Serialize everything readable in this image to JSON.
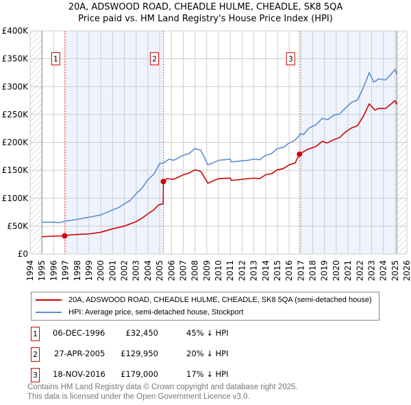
{
  "chart_data": {
    "type": "line",
    "title": "20A, ADSWOOD ROAD, CHEADLE HULME, CHEADLE, SK8 5QA",
    "subtitle": "Price paid vs. HM Land Registry's House Price Index (HPI)",
    "xlim": [
      1994,
      2026
    ],
    "ylim": [
      0,
      400000
    ],
    "x_ticks": [
      "1994",
      "1995",
      "1996",
      "1997",
      "1998",
      "1999",
      "2000",
      "2001",
      "2002",
      "2003",
      "2004",
      "2005",
      "2006",
      "2007",
      "2008",
      "2009",
      "2010",
      "2011",
      "2012",
      "2013",
      "2014",
      "2015",
      "2016",
      "2017",
      "2018",
      "2019",
      "2020",
      "2021",
      "2022",
      "2023",
      "2024",
      "2025",
      "2026"
    ],
    "y_ticks": [
      {
        "v": 0,
        "label": "£0"
      },
      {
        "v": 50000,
        "label": "£50K"
      },
      {
        "v": 100000,
        "label": "£100K"
      },
      {
        "v": 150000,
        "label": "£150K"
      },
      {
        "v": 200000,
        "label": "£200K"
      },
      {
        "v": 250000,
        "label": "£250K"
      },
      {
        "v": 300000,
        "label": "£300K"
      },
      {
        "v": 350000,
        "label": "£350K"
      },
      {
        "v": 400000,
        "label": "£400K"
      }
    ],
    "grid": true,
    "data_range": [
      1995,
      2025.15
    ],
    "shaded_periods": [
      [
        1996.93,
        2005.32
      ],
      [
        2016.88,
        2025.15
      ]
    ],
    "series": [
      {
        "name": "20A, ADSWOOD ROAD, CHEADLE HULME, CHEADLE, SK8 5QA (semi-detached house)",
        "color": "#cc0000",
        "points": [
          [
            1995,
            31000
          ],
          [
            1996,
            32000
          ],
          [
            1996.93,
            32450
          ],
          [
            1997.3,
            34000
          ],
          [
            1998,
            35000
          ],
          [
            1999,
            36000
          ],
          [
            2000,
            39000
          ],
          [
            2001,
            45000
          ],
          [
            2002,
            50000
          ],
          [
            2003,
            58000
          ],
          [
            2003.5,
            64000
          ],
          [
            2004,
            72000
          ],
          [
            2004.5,
            79000
          ],
          [
            2004.9,
            88000
          ],
          [
            2005.3,
            90000
          ],
          [
            2005.32,
            129950
          ],
          [
            2005.6,
            135000
          ],
          [
            2006.2,
            134000
          ],
          [
            2007,
            142000
          ],
          [
            2007.5,
            145000
          ],
          [
            2008,
            151000
          ],
          [
            2008.5,
            148000
          ],
          [
            2009.1,
            127000
          ],
          [
            2010,
            135000
          ],
          [
            2011,
            136000
          ],
          [
            2011.1,
            132000
          ],
          [
            2012,
            134000
          ],
          [
            2013,
            136000
          ],
          [
            2013.5,
            135000
          ],
          [
            2014,
            142000
          ],
          [
            2014.5,
            144000
          ],
          [
            2015,
            151000
          ],
          [
            2015.5,
            153000
          ],
          [
            2016,
            160000
          ],
          [
            2016.5,
            163000
          ],
          [
            2016.88,
            179000
          ],
          [
            2017.5,
            187000
          ],
          [
            2018.3,
            193000
          ],
          [
            2018.8,
            202000
          ],
          [
            2019.2,
            199000
          ],
          [
            2019.8,
            205000
          ],
          [
            2020.3,
            209000
          ],
          [
            2020.8,
            219000
          ],
          [
            2021.3,
            226000
          ],
          [
            2021.8,
            230000
          ],
          [
            2022.3,
            247000
          ],
          [
            2022.8,
            269000
          ],
          [
            2023.3,
            258000
          ],
          [
            2023.6,
            261000
          ],
          [
            2024.2,
            261000
          ],
          [
            2024.6,
            268000
          ],
          [
            2025,
            275000
          ],
          [
            2025.15,
            268000
          ]
        ]
      },
      {
        "name": "HPI: Average price, semi-detached house, Stockport",
        "color": "#5b8dd0",
        "points": [
          [
            1995,
            57000
          ],
          [
            1996,
            57000
          ],
          [
            1996.5,
            56000
          ],
          [
            1997,
            59000
          ],
          [
            1998,
            62000
          ],
          [
            1999,
            66000
          ],
          [
            2000,
            70000
          ],
          [
            2001,
            79000
          ],
          [
            2001.5,
            83000
          ],
          [
            2002,
            90000
          ],
          [
            2002.5,
            96000
          ],
          [
            2003,
            108000
          ],
          [
            2003.5,
            118000
          ],
          [
            2004,
            133000
          ],
          [
            2004.5,
            143000
          ],
          [
            2005,
            162000
          ],
          [
            2005.3,
            163000
          ],
          [
            2005.8,
            170000
          ],
          [
            2006.2,
            168000
          ],
          [
            2007,
            177000
          ],
          [
            2007.5,
            180000
          ],
          [
            2008,
            189000
          ],
          [
            2008.5,
            186000
          ],
          [
            2009.1,
            160000
          ],
          [
            2009.5,
            163000
          ],
          [
            2010,
            168000
          ],
          [
            2010.5,
            169000
          ],
          [
            2011,
            170000
          ],
          [
            2011.1,
            165000
          ],
          [
            2012,
            167000
          ],
          [
            2012.5,
            168000
          ],
          [
            2013,
            170000
          ],
          [
            2013.5,
            169000
          ],
          [
            2014,
            177000
          ],
          [
            2014.5,
            180000
          ],
          [
            2015,
            189000
          ],
          [
            2015.5,
            191000
          ],
          [
            2016,
            199000
          ],
          [
            2016.5,
            204000
          ],
          [
            2017,
            216000
          ],
          [
            2017.2,
            214000
          ],
          [
            2017.7,
            226000
          ],
          [
            2018.3,
            232000
          ],
          [
            2018.8,
            243000
          ],
          [
            2019.3,
            241000
          ],
          [
            2019.8,
            249000
          ],
          [
            2020.3,
            251000
          ],
          [
            2020.8,
            262000
          ],
          [
            2021.3,
            272000
          ],
          [
            2021.8,
            276000
          ],
          [
            2022.3,
            298000
          ],
          [
            2022.8,
            325000
          ],
          [
            2023.2,
            308000
          ],
          [
            2023.6,
            314000
          ],
          [
            2024.2,
            312000
          ],
          [
            2024.6,
            321000
          ],
          [
            2025,
            331000
          ],
          [
            2025.15,
            322000
          ]
        ]
      }
    ],
    "sales": [
      {
        "id": "1",
        "x": 1996.93,
        "y": 32450,
        "date": "06-DEC-1996",
        "price": "£32,450",
        "hpi": "45% ↓ HPI"
      },
      {
        "id": "2",
        "x": 2005.32,
        "y": 129950,
        "date": "27-APR-2005",
        "price": "£129,950",
        "hpi": "20% ↓ HPI"
      },
      {
        "id": "3",
        "x": 2016.88,
        "y": 179000,
        "date": "18-NOV-2016",
        "price": "£179,000",
        "hpi": "17% ↓ HPI"
      }
    ],
    "legend_placement": "bottom"
  },
  "legend": {
    "red": "20A, ADSWOOD ROAD, CHEADLE HULME, CHEADLE, SK8 5QA (semi-detached house)",
    "blue": "HPI: Average price, semi-detached house, Stockport"
  },
  "footer": {
    "line1": "Contains HM Land Registry data © Crown copyright and database right 2025.",
    "line2": "This data is licensed under the Open Government Licence v3.0."
  }
}
